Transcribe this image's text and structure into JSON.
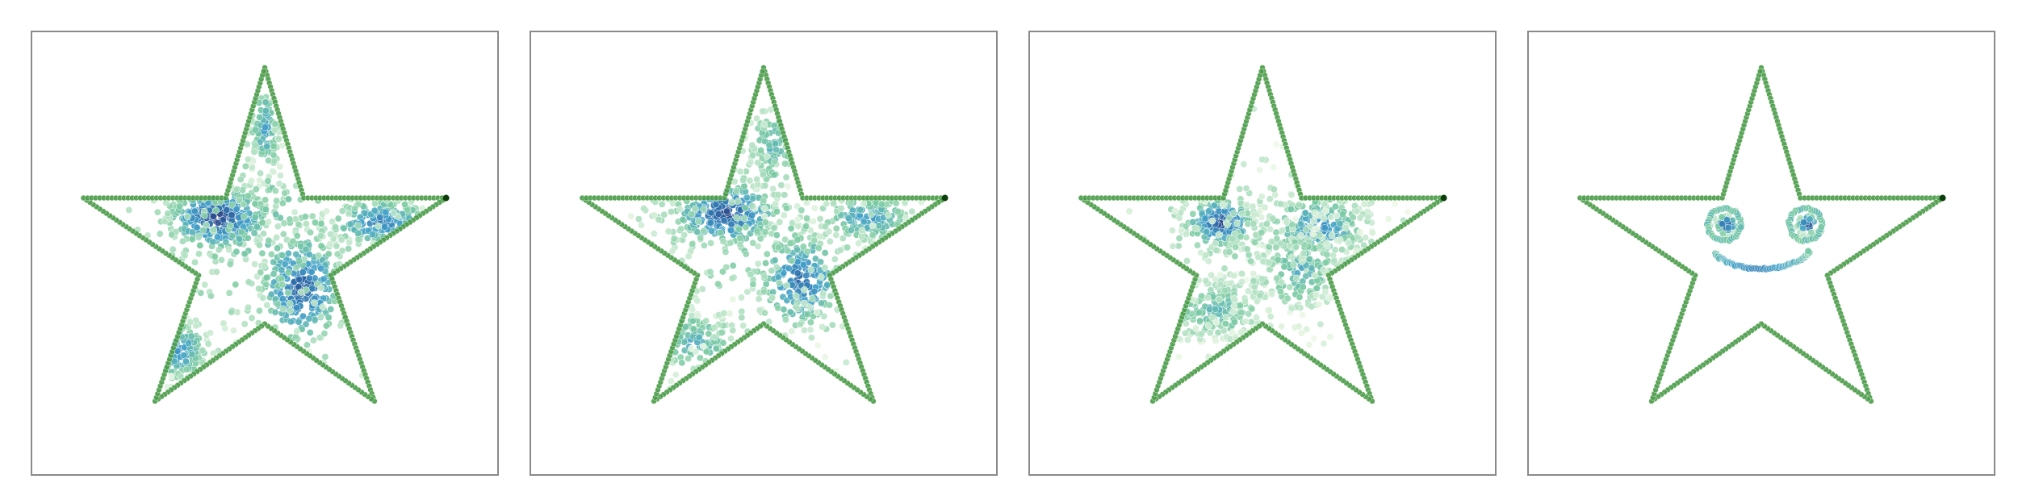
{
  "figure": {
    "background": "#ffffff",
    "frame_color": "#8a8a8a"
  },
  "chart_data": [
    {
      "type": "scatter",
      "title": "",
      "xlabel": "",
      "ylabel": "",
      "xlim": [
        0,
        1
      ],
      "ylim": [
        0,
        1
      ],
      "grid": false,
      "legend": "none",
      "boundary": {
        "color": "#4a9a4a",
        "vertices": [
          [
            0.5,
            0.92
          ],
          [
            0.584,
            0.625
          ],
          [
            0.89,
            0.625
          ],
          [
            0.642,
            0.45
          ],
          [
            0.736,
            0.165
          ],
          [
            0.5,
            0.34
          ],
          [
            0.264,
            0.165
          ],
          [
            0.358,
            0.45
          ],
          [
            0.11,
            0.625
          ],
          [
            0.416,
            0.625
          ]
        ]
      },
      "colormap": [
        "#f0f9e8",
        "#7ccba2",
        "#43a2ca",
        "#2b6aa8",
        "#2c2a6e"
      ],
      "clusters": [
        {
          "cx": 0.4,
          "cy": 0.58,
          "sx": 0.06,
          "sy": 0.04,
          "n": 320,
          "density": 0.95
        },
        {
          "cx": 0.58,
          "cy": 0.42,
          "sx": 0.05,
          "sy": 0.07,
          "n": 280,
          "density": 0.85
        },
        {
          "cx": 0.75,
          "cy": 0.57,
          "sx": 0.06,
          "sy": 0.03,
          "n": 170,
          "density": 0.7
        },
        {
          "cx": 0.5,
          "cy": 0.78,
          "sx": 0.02,
          "sy": 0.06,
          "n": 120,
          "density": 0.5
        },
        {
          "cx": 0.31,
          "cy": 0.28,
          "sx": 0.04,
          "sy": 0.04,
          "n": 120,
          "density": 0.6
        },
        {
          "cx": 0.5,
          "cy": 0.55,
          "sx": 0.18,
          "sy": 0.17,
          "n": 160,
          "density": 0.3
        }
      ]
    },
    {
      "type": "scatter",
      "title": "",
      "xlabel": "",
      "ylabel": "",
      "xlim": [
        0,
        1
      ],
      "ylim": [
        0,
        1
      ],
      "grid": false,
      "legend": "none",
      "boundary": {
        "color": "#4a9a4a",
        "vertices": [
          [
            0.5,
            0.92
          ],
          [
            0.584,
            0.625
          ],
          [
            0.89,
            0.625
          ],
          [
            0.642,
            0.45
          ],
          [
            0.736,
            0.165
          ],
          [
            0.5,
            0.34
          ],
          [
            0.264,
            0.165
          ],
          [
            0.358,
            0.45
          ],
          [
            0.11,
            0.625
          ],
          [
            0.416,
            0.625
          ]
        ]
      },
      "colormap": [
        "#f0f9e8",
        "#7ccba2",
        "#43a2ca",
        "#2b6aa8",
        "#2c2a6e"
      ],
      "clusters": [
        {
          "cx": 0.42,
          "cy": 0.59,
          "sx": 0.06,
          "sy": 0.04,
          "n": 280,
          "density": 0.92
        },
        {
          "cx": 0.58,
          "cy": 0.44,
          "sx": 0.05,
          "sy": 0.06,
          "n": 220,
          "density": 0.78
        },
        {
          "cx": 0.72,
          "cy": 0.58,
          "sx": 0.06,
          "sy": 0.03,
          "n": 150,
          "density": 0.55
        },
        {
          "cx": 0.52,
          "cy": 0.74,
          "sx": 0.03,
          "sy": 0.06,
          "n": 90,
          "density": 0.4
        },
        {
          "cx": 0.35,
          "cy": 0.3,
          "sx": 0.05,
          "sy": 0.04,
          "n": 110,
          "density": 0.45
        },
        {
          "cx": 0.5,
          "cy": 0.55,
          "sx": 0.18,
          "sy": 0.17,
          "n": 160,
          "density": 0.25
        }
      ]
    },
    {
      "type": "scatter",
      "title": "",
      "xlabel": "",
      "ylabel": "",
      "xlim": [
        0,
        1
      ],
      "ylim": [
        0,
        1
      ],
      "grid": false,
      "legend": "none",
      "boundary": {
        "color": "#4a9a4a",
        "vertices": [
          [
            0.5,
            0.92
          ],
          [
            0.584,
            0.625
          ],
          [
            0.89,
            0.625
          ],
          [
            0.642,
            0.45
          ],
          [
            0.736,
            0.165
          ],
          [
            0.5,
            0.34
          ],
          [
            0.264,
            0.165
          ],
          [
            0.358,
            0.45
          ],
          [
            0.11,
            0.625
          ],
          [
            0.416,
            0.625
          ]
        ]
      },
      "colormap": [
        "#f0f9e8",
        "#7ccba2",
        "#43a2ca",
        "#2b6aa8",
        "#2c2a6e"
      ],
      "clusters": [
        {
          "cx": 0.41,
          "cy": 0.57,
          "sx": 0.04,
          "sy": 0.03,
          "n": 200,
          "density": 0.9
        },
        {
          "cx": 0.62,
          "cy": 0.56,
          "sx": 0.06,
          "sy": 0.04,
          "n": 220,
          "density": 0.62
        },
        {
          "cx": 0.4,
          "cy": 0.37,
          "sx": 0.06,
          "sy": 0.04,
          "n": 200,
          "density": 0.4
        },
        {
          "cx": 0.58,
          "cy": 0.46,
          "sx": 0.05,
          "sy": 0.05,
          "n": 150,
          "density": 0.45
        },
        {
          "cx": 0.5,
          "cy": 0.52,
          "sx": 0.15,
          "sy": 0.13,
          "n": 200,
          "density": 0.18
        }
      ]
    },
    {
      "type": "scatter",
      "title": "",
      "xlabel": "",
      "ylabel": "",
      "xlim": [
        0,
        1
      ],
      "ylim": [
        0,
        1
      ],
      "grid": false,
      "legend": "none",
      "boundary": {
        "color": "#4a9a4a",
        "vertices": [
          [
            0.5,
            0.92
          ],
          [
            0.584,
            0.625
          ],
          [
            0.89,
            0.625
          ],
          [
            0.642,
            0.45
          ],
          [
            0.736,
            0.165
          ],
          [
            0.5,
            0.34
          ],
          [
            0.264,
            0.165
          ],
          [
            0.358,
            0.45
          ],
          [
            0.11,
            0.625
          ],
          [
            0.416,
            0.625
          ]
        ]
      },
      "colormap": [
        "#f0f9e8",
        "#7ccba2",
        "#43a2ca",
        "#2b6aa8",
        "#2c2a6e"
      ],
      "rings": [
        {
          "cx": 0.42,
          "cy": 0.565,
          "r": 0.035,
          "n": 40
        },
        {
          "cx": 0.595,
          "cy": 0.565,
          "r": 0.035,
          "n": 40
        }
      ],
      "clusters": [
        {
          "cx": 0.425,
          "cy": 0.565,
          "sx": 0.012,
          "sy": 0.012,
          "n": 45,
          "density": 0.95
        },
        {
          "cx": 0.6,
          "cy": 0.565,
          "sx": 0.012,
          "sy": 0.012,
          "n": 45,
          "density": 0.95
        }
      ],
      "arc": {
        "cx": 0.5,
        "cy": 0.48,
        "r": 0.11,
        "start_deg": 205,
        "end_deg": 340,
        "n": 70
      }
    }
  ]
}
